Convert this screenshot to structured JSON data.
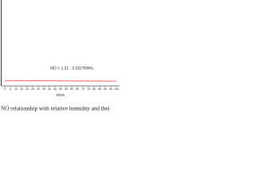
{
  "chart_data": {
    "type": "line",
    "annotation": "NO = 1.21 - 0.001*RH%",
    "xlabel": "RH%",
    "caption": "NO relationship with relative humidity and thei",
    "x": [
      0,
      100
    ],
    "series": [
      {
        "name": "NO",
        "color": "#e8403a",
        "values": [
          1.21,
          1.11
        ]
      }
    ],
    "xlim": [
      0,
      100
    ],
    "xticks": [
      0,
      5,
      10,
      15,
      20,
      25,
      30,
      35,
      40,
      45,
      50,
      55,
      60,
      65,
      70,
      75,
      80,
      85,
      90,
      95,
      100
    ],
    "ylim": [
      0,
      20
    ]
  }
}
